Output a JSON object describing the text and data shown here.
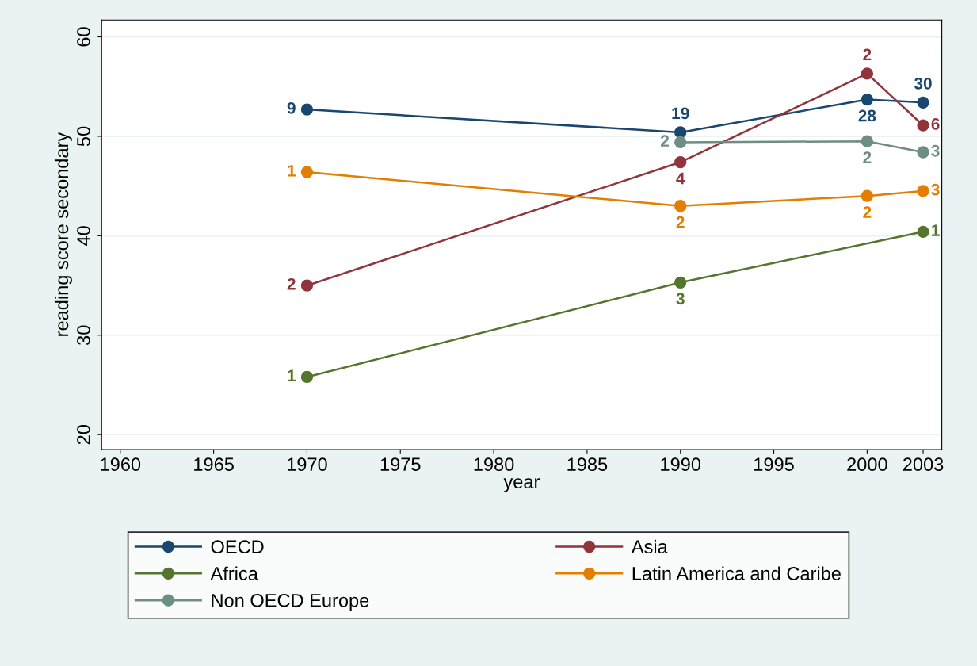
{
  "chart_data": {
    "type": "line",
    "xlabel": "year",
    "ylabel": "reading score secondary",
    "x": [
      1970,
      1990,
      2000,
      2003
    ],
    "series": [
      {
        "name": "OECD",
        "color": "#1a476f",
        "values": [
          52.7,
          50.4,
          53.7,
          53.4
        ]
      },
      {
        "name": "Asia",
        "color": "#90353b",
        "values": [
          35.0,
          47.4,
          56.3,
          51.1
        ]
      },
      {
        "name": "Africa",
        "color": "#55752f",
        "values": [
          25.8,
          35.3,
          null,
          40.4
        ]
      },
      {
        "name": "Latin America and Caribe",
        "color": "#e37e00",
        "values": [
          46.4,
          43.0,
          44.0,
          44.5
        ]
      },
      {
        "name": "Non OECD Europe",
        "color": "#6e8e84",
        "values": [
          null,
          49.4,
          49.5,
          48.4
        ]
      }
    ],
    "annotations": [
      {
        "text": "9",
        "x": 1970,
        "y": 52.7
      },
      {
        "text": "19",
        "x": 1990,
        "y": 50.4
      },
      {
        "text": "28",
        "x": 2000,
        "y": 53.7
      },
      {
        "text": "30",
        "x": 2003,
        "y": 53.4
      },
      {
        "text": "2",
        "x": 1970,
        "y": 35.0
      },
      {
        "text": "4",
        "x": 1990,
        "y": 47.4
      },
      {
        "text": "2",
        "x": 2000,
        "y": 56.3
      },
      {
        "text": "6",
        "x": 2003,
        "y": 51.1
      },
      {
        "text": "1",
        "x": 1970,
        "y": 25.8
      },
      {
        "text": "3",
        "x": 1990,
        "y": 35.3
      },
      {
        "text": "1",
        "x": 2003,
        "y": 40.4
      },
      {
        "text": "1",
        "x": 1970,
        "y": 46.4
      },
      {
        "text": "2",
        "x": 1990,
        "y": 43.0
      },
      {
        "text": "2",
        "x": 2000,
        "y": 44.0
      },
      {
        "text": "3",
        "x": 2003,
        "y": 44.5
      },
      {
        "text": "2",
        "x": 1990,
        "y": 49.4
      },
      {
        "text": "2",
        "x": 2000,
        "y": 49.5
      },
      {
        "text": "3",
        "x": 2003,
        "y": 48.4
      }
    ],
    "xlim": [
      1959,
      2004
    ],
    "ylim": [
      18.5,
      61.7
    ],
    "xticks": [
      1960,
      1965,
      1970,
      1975,
      1980,
      1985,
      1990,
      1995,
      2000,
      2003
    ],
    "yticks": [
      20,
      30,
      40,
      50,
      60
    ],
    "grid": "y",
    "legend": "bottom",
    "marker": "circle",
    "line_style": "solid"
  }
}
